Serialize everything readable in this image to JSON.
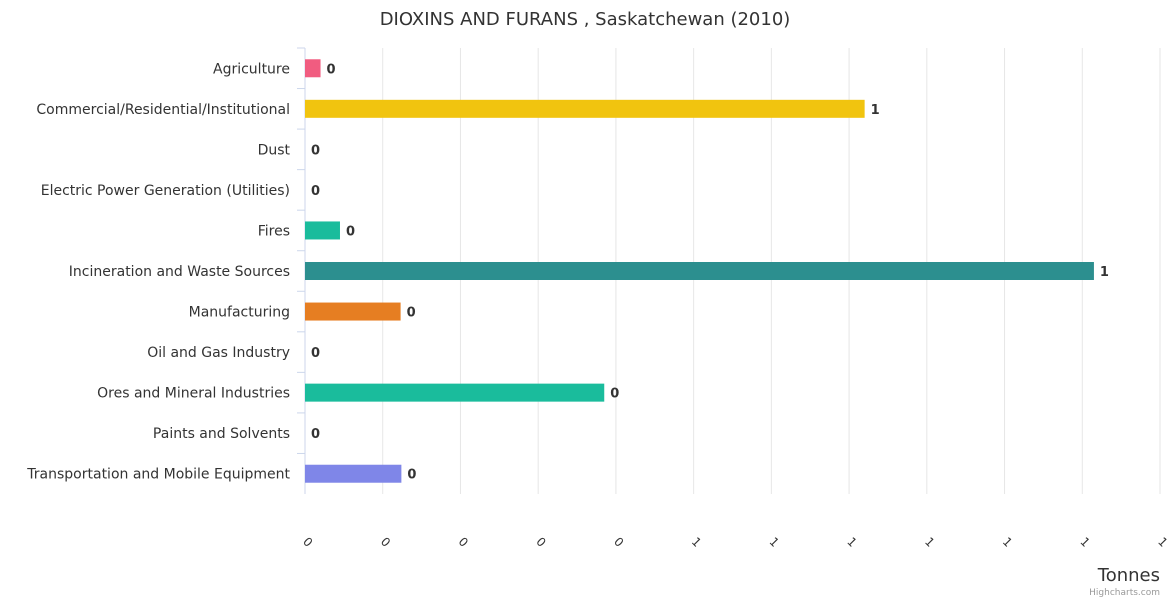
{
  "chart_data": {
    "type": "bar",
    "orientation": "horizontal",
    "title": "DIOXINS AND FURANS , Saskatchewan (2010)",
    "xlabel": "",
    "ylabel": "Tonnes",
    "categories": [
      "Agriculture",
      "Commercial/Residential/Institutional",
      "Dust",
      "Electric Power Generation (Utilities)",
      "Fires",
      "Incineration and Waste Sources",
      "Manufacturing",
      "Oil and Gas Industry",
      "Ores and Mineral Industries",
      "Paints and Solvents",
      "Transportation and Mobile Equipment"
    ],
    "values": [
      0.02,
      0.72,
      0,
      0,
      0.045,
      1.015,
      0.123,
      0,
      0.385,
      0,
      0.124
    ],
    "data_labels": [
      "0",
      "1",
      "0",
      "0",
      "0",
      "1",
      "0",
      "0",
      "0",
      "0",
      "0"
    ],
    "colors": [
      "#f15c80",
      "#f1c40f",
      "#3498db",
      "#8e44ad",
      "#1abc9c",
      "#2c8f8f",
      "#e67e22",
      "#95a5a6",
      "#1abc9c",
      "#e74c3c",
      "#7f86e8"
    ],
    "tick_labels": [
      "0",
      "0",
      "0",
      "0",
      "0",
      "1",
      "1",
      "1",
      "1",
      "1",
      "1",
      "1"
    ],
    "xlim": [
      0,
      1.1
    ],
    "grid": true,
    "credits": "Highcharts.com"
  }
}
